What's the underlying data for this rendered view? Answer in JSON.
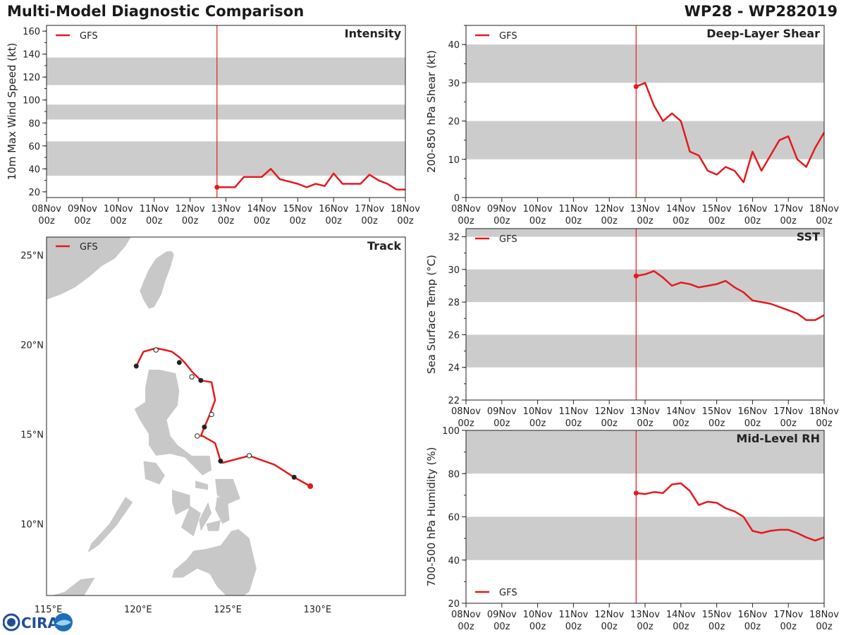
{
  "header": {
    "title": "Multi-Model Diagnostic Comparison",
    "storm": "WP28 - WP282019"
  },
  "logo": {
    "text": "CIRA"
  },
  "colors": {
    "series": "#e41a1c",
    "band": "#cccccc",
    "land": "#c8c8c8",
    "initial_line": "#e41a1c"
  },
  "time_axis": {
    "ticks": [
      "08Nov 00z",
      "09Nov 00z",
      "10Nov 00z",
      "11Nov 00z",
      "12Nov 00z",
      "13Nov 00z",
      "14Nov 00z",
      "15Nov 00z",
      "16Nov 00z",
      "17Nov 00z",
      "18Nov 00z"
    ],
    "initial_day": 12.75
  },
  "chart_data": [
    {
      "id": "intensity",
      "type": "line",
      "title": "Intensity",
      "ylabel": "10m Max Wind Speed (kt)",
      "xlabel": "",
      "ylim": [
        15,
        165
      ],
      "yticks": [
        20,
        40,
        60,
        80,
        100,
        120,
        140,
        160
      ],
      "bands": [
        [
          34,
          64
        ],
        [
          83,
          96
        ],
        [
          113,
          137
        ]
      ],
      "legend": "GFS",
      "legend_position": "top-left",
      "series": [
        {
          "name": "GFS",
          "x": [
            12.75,
            13.0,
            13.25,
            13.5,
            13.75,
            14.0,
            14.25,
            14.5,
            14.75,
            15.0,
            15.25,
            15.5,
            15.75,
            16.0,
            16.25,
            16.5,
            16.75,
            17.0,
            17.25,
            17.5,
            17.75,
            18.0
          ],
          "values": [
            24,
            24,
            24,
            33,
            33,
            33,
            40,
            31,
            29,
            27,
            24,
            27,
            25,
            36,
            27,
            27,
            27,
            35,
            30,
            27,
            22,
            22
          ]
        }
      ]
    },
    {
      "id": "shear",
      "type": "line",
      "title": "Deep-Layer Shear",
      "ylabel": "200-850 hPa Shear (kt)",
      "xlabel": "",
      "ylim": [
        0,
        45
      ],
      "yticks": [
        0,
        10,
        20,
        30,
        40
      ],
      "bands": [
        [
          10,
          20
        ],
        [
          30,
          40
        ]
      ],
      "legend": "GFS",
      "legend_position": "top-left",
      "series": [
        {
          "name": "GFS",
          "x": [
            12.75,
            13.0,
            13.25,
            13.5,
            13.75,
            14.0,
            14.25,
            14.5,
            14.75,
            15.0,
            15.25,
            15.5,
            15.75,
            16.0,
            16.25,
            16.5,
            16.75,
            17.0,
            17.25,
            17.5,
            17.75,
            18.0
          ],
          "values": [
            29,
            30,
            24,
            20,
            22,
            20,
            12,
            11,
            7,
            6,
            8,
            7,
            4,
            12,
            7,
            11,
            15,
            16,
            10,
            8,
            13,
            17
          ]
        }
      ]
    },
    {
      "id": "sst",
      "type": "line",
      "title": "SST",
      "ylabel": "Sea Surface Temp (°C)",
      "xlabel": "",
      "ylim": [
        22,
        32.5
      ],
      "yticks": [
        22,
        24,
        26,
        28,
        30,
        32
      ],
      "bands": [
        [
          24,
          26
        ],
        [
          28,
          30
        ],
        [
          32,
          32.5
        ]
      ],
      "legend": "GFS",
      "legend_position": "top-left",
      "series": [
        {
          "name": "GFS",
          "x": [
            12.75,
            13.0,
            13.25,
            13.5,
            13.75,
            14.0,
            14.25,
            14.5,
            14.75,
            15.0,
            15.25,
            15.5,
            15.75,
            16.0,
            16.25,
            16.5,
            16.75,
            17.0,
            17.25,
            17.5,
            17.75,
            18.0
          ],
          "values": [
            29.6,
            29.7,
            29.9,
            29.5,
            29.0,
            29.2,
            29.1,
            28.9,
            29.0,
            29.1,
            29.3,
            28.9,
            28.6,
            28.1,
            28.0,
            27.9,
            27.7,
            27.5,
            27.3,
            26.9,
            26.9,
            27.2
          ]
        }
      ]
    },
    {
      "id": "rh",
      "type": "line",
      "title": "Mid-Level RH",
      "ylabel": "700-500 hPa Humidity (%)",
      "xlabel": "",
      "ylim": [
        20,
        100
      ],
      "yticks": [
        20,
        40,
        60,
        80,
        100
      ],
      "bands": [
        [
          40,
          60
        ],
        [
          80,
          100
        ]
      ],
      "legend": "GFS",
      "legend_position": "bottom-left",
      "series": [
        {
          "name": "GFS",
          "x": [
            12.75,
            13.0,
            13.25,
            13.5,
            13.75,
            14.0,
            14.25,
            14.5,
            14.75,
            15.0,
            15.25,
            15.5,
            15.75,
            16.0,
            16.25,
            16.5,
            16.75,
            17.0,
            17.25,
            17.5,
            17.75,
            18.0
          ],
          "values": [
            71,
            70.5,
            71.5,
            71,
            75,
            75.5,
            72,
            65.5,
            67,
            66.5,
            64,
            62.5,
            60,
            53.5,
            52.5,
            53.5,
            54,
            54,
            52.5,
            50.5,
            49,
            50.5
          ]
        }
      ]
    },
    {
      "id": "track",
      "type": "scatter",
      "title": "Track",
      "xlabel": "",
      "ylabel": "",
      "xlim": [
        114.9,
        134.9
      ],
      "ylim": [
        6,
        26
      ],
      "xticks": [
        115,
        120,
        125,
        130
      ],
      "xtick_labels": [
        "115°E",
        "120°E",
        "125°E",
        "130°E"
      ],
      "yticks": [
        10,
        15,
        20,
        25
      ],
      "ytick_labels": [
        "10°N",
        "15°N",
        "20°N",
        "25°N"
      ],
      "legend": "GFS",
      "legend_position": "top-left",
      "series": [
        {
          "name": "GFS",
          "lon": [
            129.6,
            128.7,
            127.6,
            126.2,
            124.7,
            124.6,
            124.3,
            123.6,
            123.5,
            123.7,
            124.0,
            124.3,
            124.1,
            123.5,
            123.3,
            123.0,
            122.6,
            122.3,
            121.9,
            121.5,
            121.0,
            120.3,
            119.9
          ],
          "lat": [
            12.1,
            12.6,
            13.3,
            13.8,
            13.4,
            13.5,
            14.5,
            14.9,
            14.9,
            15.4,
            16.1,
            16.9,
            17.9,
            18.0,
            18.2,
            18.5,
            19.0,
            19.3,
            19.6,
            19.7,
            19.8,
            19.6,
            18.8
          ],
          "markers": [
            {
              "lon": 129.6,
              "lat": 12.1,
              "style": "initial"
            },
            {
              "lon": 128.7,
              "lat": 12.6,
              "style": "filled"
            },
            {
              "lon": 126.2,
              "lat": 13.8,
              "style": "open"
            },
            {
              "lon": 124.6,
              "lat": 13.5,
              "style": "filled"
            },
            {
              "lon": 123.3,
              "lat": 14.9,
              "style": "open"
            },
            {
              "lon": 123.7,
              "lat": 15.4,
              "style": "filled"
            },
            {
              "lon": 124.1,
              "lat": 16.1,
              "style": "open"
            },
            {
              "lon": 123.5,
              "lat": 18.0,
              "style": "filled"
            },
            {
              "lon": 123.0,
              "lat": 18.2,
              "style": "open"
            },
            {
              "lon": 122.3,
              "lat": 19.0,
              "style": "filled"
            },
            {
              "lon": 121.0,
              "lat": 19.7,
              "style": "open"
            },
            {
              "lon": 119.9,
              "lat": 18.8,
              "style": "filled"
            }
          ]
        }
      ]
    }
  ]
}
